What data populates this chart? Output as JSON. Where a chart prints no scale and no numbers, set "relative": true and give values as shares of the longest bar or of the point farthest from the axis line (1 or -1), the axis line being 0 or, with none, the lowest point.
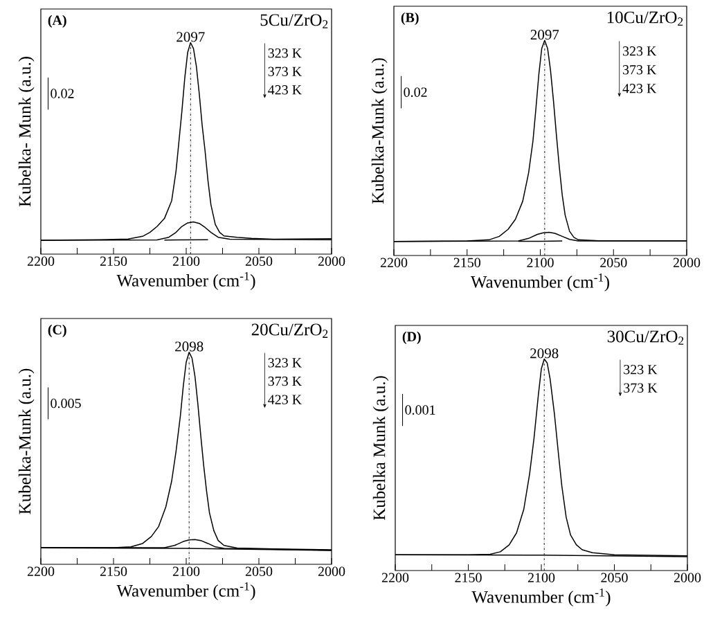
{
  "chart_data": [
    {
      "type": "line",
      "title": "(A)",
      "subtitle": "5Cu/ZrO$_{2}$",
      "xlabel": "Wavenumber (cm$^{-1}$)",
      "ylabel": "Kubelka- Munk (a.u.)",
      "relative": true,
      "xlim": [
        2200,
        2000
      ],
      "xticks": [
        2200,
        {
          "value": 2175,
          "label": null
        },
        2150,
        {
          "value": 2125,
          "label": null
        },
        2100,
        {
          "value": 2075,
          "label": null
        },
        2050,
        {
          "value": 2025,
          "label": null
        },
        2000
      ],
      "annotations": [
        "0.02",
        "323 K",
        "373 K",
        "423 K"
      ],
      "ref_lines": [
        {
          "axis": "x",
          "value": 2097,
          "label": "2097",
          "line_style": "dashed"
        }
      ],
      "series": [
        {
          "color": "#000000",
          "x": [
            2200,
            2160,
            2140,
            2130,
            2125,
            2120,
            2115,
            2110,
            2107,
            2105,
            2103,
            2101,
            2099,
            2097,
            2095,
            2093,
            2091,
            2089,
            2087,
            2085,
            2083,
            2080,
            2077,
            2074,
            2065,
            2055,
            2040,
            2000
          ],
          "values": [
            0,
            0.003,
            0.006,
            0.02,
            0.04,
            0.07,
            0.11,
            0.2,
            0.35,
            0.5,
            0.65,
            0.82,
            0.95,
            1.0,
            0.97,
            0.88,
            0.74,
            0.58,
            0.45,
            0.3,
            0.18,
            0.08,
            0.04,
            0.022,
            0.015,
            0.01,
            0.005,
            0.008
          ]
        },
        {
          "color": "#000000",
          "x": [
            2200,
            2120,
            2112,
            2107,
            2103,
            2099,
            2095,
            2091,
            2087,
            2083,
            2078,
            2070,
            2000
          ],
          "values": [
            0,
            0.002,
            0.015,
            0.04,
            0.07,
            0.088,
            0.093,
            0.085,
            0.065,
            0.04,
            0.015,
            0.005,
            0.003
          ]
        },
        {
          "color": "#000000",
          "x": [
            2115,
            2100,
            2085
          ],
          "values": [
            0.001,
            0.002,
            0.003
          ]
        }
      ]
    },
    {
      "type": "line",
      "title": "(B)",
      "subtitle": "10Cu/ZrO$_{2}$",
      "xlabel": "Wavenumber (cm$^{-1}$)",
      "ylabel": "Kubelka-Munk (a.u.)",
      "relative": true,
      "xlim": [
        2200,
        2000
      ],
      "xticks": [
        2200,
        {
          "value": 2175,
          "label": null
        },
        2150,
        {
          "value": 2125,
          "label": null
        },
        2100,
        {
          "value": 2075,
          "label": null
        },
        2050,
        {
          "value": 2025,
          "label": null
        },
        2000
      ],
      "annotations": [
        "0.02",
        "323 K",
        "373 K",
        "423 K"
      ],
      "ref_lines": [
        {
          "axis": "x",
          "value": 2097,
          "label": "2097",
          "line_style": "dashed"
        }
      ],
      "series": [
        {
          "color": "#000000",
          "x": [
            2200,
            2150,
            2135,
            2128,
            2122,
            2117,
            2112,
            2108,
            2105,
            2103,
            2101,
            2099,
            2097,
            2095,
            2093,
            2091,
            2089,
            2087,
            2085,
            2083,
            2080,
            2077,
            2074,
            2060,
            2000
          ],
          "values": [
            0,
            0.002,
            0.008,
            0.025,
            0.06,
            0.11,
            0.2,
            0.34,
            0.5,
            0.66,
            0.83,
            0.96,
            1.0,
            0.96,
            0.85,
            0.7,
            0.53,
            0.37,
            0.23,
            0.13,
            0.05,
            0.02,
            0.008,
            0.003,
            0.003
          ]
        },
        {
          "color": "#000000",
          "x": [
            2200,
            2115,
            2108,
            2102,
            2098,
            2094,
            2090,
            2085,
            2080,
            2074,
            2000
          ],
          "values": [
            0,
            0.002,
            0.015,
            0.035,
            0.043,
            0.045,
            0.04,
            0.025,
            0.01,
            0.002,
            0.002
          ]
        },
        {
          "color": "#000000",
          "x": [
            2115,
            2100,
            2085
          ],
          "values": [
            0.001,
            0.001,
            0.002
          ]
        }
      ]
    },
    {
      "type": "line",
      "title": "(C)",
      "subtitle": "20Cu/ZrO$_{2}$",
      "xlabel": "Wavenumber (cm$^{-1}$)",
      "ylabel": "Kubelka-Munk (a.u.)",
      "relative": true,
      "xlim": [
        2200,
        2000
      ],
      "xticks": [
        2200,
        {
          "value": 2175,
          "label": null
        },
        2150,
        {
          "value": 2125,
          "label": null
        },
        2100,
        {
          "value": 2075,
          "label": null
        },
        2050,
        {
          "value": 2025,
          "label": null
        },
        2000
      ],
      "annotations": [
        "0.005",
        "323 K",
        "373 K",
        "423 K"
      ],
      "ref_lines": [
        {
          "axis": "x",
          "value": 2098,
          "label": "2098",
          "line_style": "dashed"
        }
      ],
      "series": [
        {
          "color": "#000000",
          "x": [
            2200,
            2150,
            2138,
            2130,
            2124,
            2119,
            2114,
            2110,
            2107,
            2104,
            2102,
            2100,
            2098,
            2096,
            2094,
            2092,
            2090,
            2088,
            2086,
            2084,
            2081,
            2078,
            2074,
            2065,
            2040,
            2000
          ],
          "values": [
            0.014,
            0.014,
            0.018,
            0.035,
            0.07,
            0.12,
            0.22,
            0.35,
            0.5,
            0.68,
            0.83,
            0.95,
            1.0,
            0.97,
            0.88,
            0.74,
            0.58,
            0.43,
            0.3,
            0.19,
            0.1,
            0.05,
            0.025,
            0.012,
            0.008,
            0.003
          ]
        },
        {
          "color": "#000000",
          "x": [
            2200,
            2115,
            2108,
            2102,
            2098,
            2094,
            2090,
            2085,
            2080,
            2074,
            2000
          ],
          "values": [
            0.014,
            0.014,
            0.025,
            0.045,
            0.053,
            0.055,
            0.05,
            0.035,
            0.018,
            0.01,
            0.001
          ]
        },
        {
          "color": "#000000",
          "x": [
            2200,
            2100,
            2000
          ],
          "values": [
            0.013,
            0.01,
            0
          ]
        }
      ]
    },
    {
      "type": "line",
      "title": "(D)",
      "subtitle": "30Cu/ZrO$_{2}$",
      "xlabel": "Wavenumber (cm$^{-1}$)",
      "ylabel": "Kubelka Munk (a.u.)",
      "relative": true,
      "xlim": [
        2200,
        2000
      ],
      "xticks": [
        2200,
        {
          "value": 2175,
          "label": null
        },
        2150,
        {
          "value": 2125,
          "label": null
        },
        2100,
        {
          "value": 2075,
          "label": null
        },
        2050,
        {
          "value": 2025,
          "label": null
        },
        2000
      ],
      "annotations": [
        "0.001",
        "323 K",
        "373 K"
      ],
      "ref_lines": [
        {
          "axis": "x",
          "value": 2098,
          "label": "2098",
          "line_style": "dashed"
        }
      ],
      "series": [
        {
          "color": "#000000",
          "x": [
            2200,
            2150,
            2135,
            2128,
            2122,
            2117,
            2112,
            2108,
            2105,
            2102,
            2100,
            2098,
            2096,
            2094,
            2091,
            2088,
            2086,
            2083,
            2080,
            2076,
            2072,
            2065,
            2050,
            2000
          ],
          "values": [
            0.01,
            0.01,
            0.012,
            0.025,
            0.06,
            0.12,
            0.24,
            0.42,
            0.6,
            0.82,
            0.95,
            1.0,
            0.98,
            0.9,
            0.72,
            0.5,
            0.36,
            0.2,
            0.11,
            0.06,
            0.035,
            0.02,
            0.01,
            0.004
          ]
        },
        {
          "color": "#000000",
          "x": [
            2200,
            2100,
            2000
          ],
          "values": [
            0.01,
            0.008,
            0
          ]
        }
      ]
    }
  ]
}
